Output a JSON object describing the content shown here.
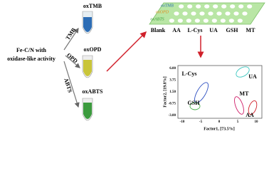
{
  "source": {
    "line1": "Fe-C/N with",
    "line2": "oxidase-like activity"
  },
  "substrates": [
    "TMB",
    "OPD",
    "ABTS"
  ],
  "products": [
    "oxTMB",
    "oxOPD",
    "oxABTS"
  ],
  "plate": {
    "rows": [
      "oxTMB",
      "oxOPD",
      "oxABTS"
    ],
    "columns": [
      "Blank",
      "AA",
      "L-Cys",
      "UA",
      "GSH",
      "MT"
    ]
  },
  "plot": {
    "y_label": "Factor2, [19.8%]",
    "x_label": "Factor1, [73.5%]",
    "yticks": [
      "6.00",
      "3.75",
      "1.50",
      "-0.75",
      "-3.00"
    ],
    "xticks": [
      "-10",
      "-5",
      "0",
      "5",
      "10"
    ],
    "groups": [
      "L-Cys",
      "UA",
      "GSH",
      "MT",
      "AA"
    ]
  }
}
